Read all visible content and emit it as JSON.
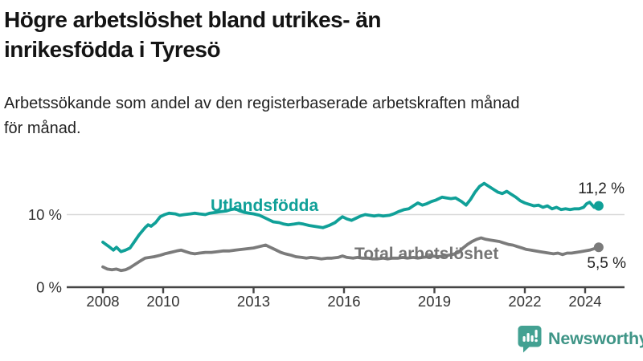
{
  "header": {
    "title_line1": "Högre arbetslöshet bland utrikes- än",
    "title_line2": "inrikesfödda i Tyresö",
    "subtitle_line1": "Arbetssökande som andel av den registerbaserade arbetskraften månad",
    "subtitle_line2": "för månad."
  },
  "branding": {
    "logo_text": "Newsworthy",
    "logo_icon": "bar-chart-speech-bubble-icon",
    "icon_color": "#43a192",
    "text_color": "#3f9587"
  },
  "chart_data": {
    "type": "line",
    "title": "",
    "xlabel": "",
    "ylabel": "",
    "x_axis": {
      "ticks": [
        2008,
        2010,
        2013,
        2016,
        2019,
        2022,
        2024
      ],
      "tick_labels": [
        "2008",
        "2010",
        "2013",
        "2016",
        "2019",
        "2022",
        "2024"
      ],
      "range": [
        2007.8,
        2025.3
      ]
    },
    "y_axis": {
      "ticks": [
        0,
        10
      ],
      "tick_labels": [
        "0 %",
        "10 %"
      ],
      "range": [
        0,
        15.5
      ],
      "gridlines": [
        10
      ],
      "unit": "percent"
    },
    "legend_position": "inline-labels",
    "grid": "horizontal-only",
    "series": [
      {
        "name": "Utlandsfödda",
        "color": "#10a098",
        "end_label": "11,2 %",
        "end_value": 11.2,
        "points": [
          [
            2008.0,
            6.2
          ],
          [
            2008.1,
            5.9
          ],
          [
            2008.2,
            5.6
          ],
          [
            2008.35,
            5.1
          ],
          [
            2008.45,
            5.5
          ],
          [
            2008.6,
            4.9
          ],
          [
            2008.75,
            5.1
          ],
          [
            2008.9,
            5.4
          ],
          [
            2009.05,
            6.3
          ],
          [
            2009.2,
            7.2
          ],
          [
            2009.4,
            8.2
          ],
          [
            2009.5,
            8.6
          ],
          [
            2009.6,
            8.4
          ],
          [
            2009.75,
            8.9
          ],
          [
            2009.9,
            9.7
          ],
          [
            2010.05,
            10.0
          ],
          [
            2010.2,
            10.2
          ],
          [
            2010.4,
            10.1
          ],
          [
            2010.55,
            9.9
          ],
          [
            2010.7,
            10.0
          ],
          [
            2010.9,
            10.1
          ],
          [
            2011.05,
            10.2
          ],
          [
            2011.2,
            10.1
          ],
          [
            2011.4,
            10.0
          ],
          [
            2011.55,
            10.2
          ],
          [
            2011.75,
            10.3
          ],
          [
            2011.9,
            10.4
          ],
          [
            2012.1,
            10.5
          ],
          [
            2012.25,
            10.7
          ],
          [
            2012.4,
            10.8
          ],
          [
            2012.55,
            10.5
          ],
          [
            2012.7,
            10.3
          ],
          [
            2012.85,
            10.2
          ],
          [
            2013.0,
            10.1
          ],
          [
            2013.2,
            9.9
          ],
          [
            2013.35,
            9.6
          ],
          [
            2013.5,
            9.3
          ],
          [
            2013.65,
            9.0
          ],
          [
            2013.85,
            8.9
          ],
          [
            2014.0,
            8.7
          ],
          [
            2014.15,
            8.6
          ],
          [
            2014.35,
            8.7
          ],
          [
            2014.5,
            8.8
          ],
          [
            2014.65,
            8.7
          ],
          [
            2014.85,
            8.5
          ],
          [
            2015.0,
            8.4
          ],
          [
            2015.15,
            8.3
          ],
          [
            2015.3,
            8.2
          ],
          [
            2015.5,
            8.5
          ],
          [
            2015.7,
            8.9
          ],
          [
            2015.85,
            9.4
          ],
          [
            2015.95,
            9.7
          ],
          [
            2016.1,
            9.4
          ],
          [
            2016.25,
            9.2
          ],
          [
            2016.4,
            9.5
          ],
          [
            2016.55,
            9.8
          ],
          [
            2016.7,
            10.0
          ],
          [
            2016.85,
            9.9
          ],
          [
            2017.0,
            9.8
          ],
          [
            2017.15,
            9.9
          ],
          [
            2017.3,
            9.8
          ],
          [
            2017.5,
            9.9
          ],
          [
            2017.65,
            10.1
          ],
          [
            2017.8,
            10.4
          ],
          [
            2018.0,
            10.7
          ],
          [
            2018.15,
            10.8
          ],
          [
            2018.3,
            11.2
          ],
          [
            2018.45,
            11.6
          ],
          [
            2018.6,
            11.3
          ],
          [
            2018.75,
            11.5
          ],
          [
            2018.9,
            11.8
          ],
          [
            2019.05,
            12.0
          ],
          [
            2019.25,
            12.4
          ],
          [
            2019.4,
            12.3
          ],
          [
            2019.55,
            12.2
          ],
          [
            2019.7,
            12.3
          ],
          [
            2019.9,
            11.8
          ],
          [
            2020.05,
            11.3
          ],
          [
            2020.2,
            12.1
          ],
          [
            2020.35,
            13.1
          ],
          [
            2020.5,
            13.9
          ],
          [
            2020.65,
            14.3
          ],
          [
            2020.8,
            13.9
          ],
          [
            2020.95,
            13.5
          ],
          [
            2021.1,
            13.1
          ],
          [
            2021.25,
            12.9
          ],
          [
            2021.4,
            13.2
          ],
          [
            2021.55,
            12.8
          ],
          [
            2021.7,
            12.4
          ],
          [
            2021.85,
            11.9
          ],
          [
            2022.0,
            11.6
          ],
          [
            2022.15,
            11.4
          ],
          [
            2022.3,
            11.2
          ],
          [
            2022.45,
            11.3
          ],
          [
            2022.6,
            11.0
          ],
          [
            2022.75,
            11.2
          ],
          [
            2022.9,
            10.8
          ],
          [
            2023.05,
            11.0
          ],
          [
            2023.2,
            10.7
          ],
          [
            2023.35,
            10.8
          ],
          [
            2023.5,
            10.7
          ],
          [
            2023.65,
            10.8
          ],
          [
            2023.8,
            10.8
          ],
          [
            2023.95,
            11.0
          ],
          [
            2024.05,
            11.5
          ],
          [
            2024.15,
            11.7
          ],
          [
            2024.3,
            11.0
          ],
          [
            2024.45,
            11.2
          ]
        ]
      },
      {
        "name": "Total arbetslöshet",
        "color": "#7b7b7b",
        "end_label": "5,5 %",
        "end_value": 5.5,
        "points": [
          [
            2008.0,
            2.8
          ],
          [
            2008.15,
            2.5
          ],
          [
            2008.3,
            2.4
          ],
          [
            2008.45,
            2.5
          ],
          [
            2008.6,
            2.3
          ],
          [
            2008.75,
            2.4
          ],
          [
            2008.9,
            2.7
          ],
          [
            2009.05,
            3.1
          ],
          [
            2009.2,
            3.5
          ],
          [
            2009.4,
            4.0
          ],
          [
            2009.55,
            4.1
          ],
          [
            2009.7,
            4.2
          ],
          [
            2009.9,
            4.4
          ],
          [
            2010.05,
            4.6
          ],
          [
            2010.25,
            4.8
          ],
          [
            2010.45,
            5.0
          ],
          [
            2010.6,
            5.1
          ],
          [
            2010.75,
            4.9
          ],
          [
            2010.9,
            4.7
          ],
          [
            2011.05,
            4.6
          ],
          [
            2011.2,
            4.7
          ],
          [
            2011.4,
            4.8
          ],
          [
            2011.6,
            4.8
          ],
          [
            2011.8,
            4.9
          ],
          [
            2012.0,
            5.0
          ],
          [
            2012.2,
            5.0
          ],
          [
            2012.4,
            5.1
          ],
          [
            2012.6,
            5.2
          ],
          [
            2012.8,
            5.3
          ],
          [
            2013.0,
            5.4
          ],
          [
            2013.2,
            5.6
          ],
          [
            2013.4,
            5.8
          ],
          [
            2013.55,
            5.5
          ],
          [
            2013.7,
            5.2
          ],
          [
            2013.9,
            4.8
          ],
          [
            2014.05,
            4.6
          ],
          [
            2014.25,
            4.4
          ],
          [
            2014.4,
            4.2
          ],
          [
            2014.6,
            4.1
          ],
          [
            2014.75,
            4.0
          ],
          [
            2014.9,
            4.1
          ],
          [
            2015.1,
            4.0
          ],
          [
            2015.25,
            3.9
          ],
          [
            2015.45,
            4.0
          ],
          [
            2015.6,
            4.0
          ],
          [
            2015.8,
            4.1
          ],
          [
            2015.95,
            4.3
          ],
          [
            2016.1,
            4.1
          ],
          [
            2016.3,
            4.0
          ],
          [
            2016.45,
            4.1
          ],
          [
            2016.6,
            4.0
          ],
          [
            2016.8,
            4.0
          ],
          [
            2016.95,
            3.9
          ],
          [
            2017.1,
            3.9
          ],
          [
            2017.3,
            4.0
          ],
          [
            2017.45,
            3.9
          ],
          [
            2017.6,
            4.0
          ],
          [
            2017.8,
            4.0
          ],
          [
            2017.95,
            4.1
          ],
          [
            2018.1,
            4.0
          ],
          [
            2018.3,
            4.1
          ],
          [
            2018.45,
            4.0
          ],
          [
            2018.6,
            4.1
          ],
          [
            2018.8,
            4.2
          ],
          [
            2018.95,
            4.3
          ],
          [
            2019.1,
            4.2
          ],
          [
            2019.3,
            4.3
          ],
          [
            2019.45,
            4.4
          ],
          [
            2019.6,
            4.5
          ],
          [
            2019.8,
            4.8
          ],
          [
            2019.95,
            5.4
          ],
          [
            2020.1,
            5.9
          ],
          [
            2020.25,
            6.3
          ],
          [
            2020.4,
            6.6
          ],
          [
            2020.55,
            6.8
          ],
          [
            2020.7,
            6.6
          ],
          [
            2020.85,
            6.5
          ],
          [
            2021.0,
            6.4
          ],
          [
            2021.15,
            6.3
          ],
          [
            2021.3,
            6.1
          ],
          [
            2021.45,
            5.9
          ],
          [
            2021.6,
            5.8
          ],
          [
            2021.75,
            5.6
          ],
          [
            2021.9,
            5.4
          ],
          [
            2022.05,
            5.2
          ],
          [
            2022.2,
            5.1
          ],
          [
            2022.35,
            5.0
          ],
          [
            2022.5,
            4.9
          ],
          [
            2022.65,
            4.8
          ],
          [
            2022.8,
            4.7
          ],
          [
            2022.95,
            4.6
          ],
          [
            2023.1,
            4.7
          ],
          [
            2023.25,
            4.5
          ],
          [
            2023.4,
            4.7
          ],
          [
            2023.55,
            4.7
          ],
          [
            2023.7,
            4.8
          ],
          [
            2023.85,
            4.9
          ],
          [
            2024.0,
            5.0
          ],
          [
            2024.15,
            5.1
          ],
          [
            2024.3,
            5.3
          ],
          [
            2024.45,
            5.5
          ]
        ]
      }
    ]
  }
}
